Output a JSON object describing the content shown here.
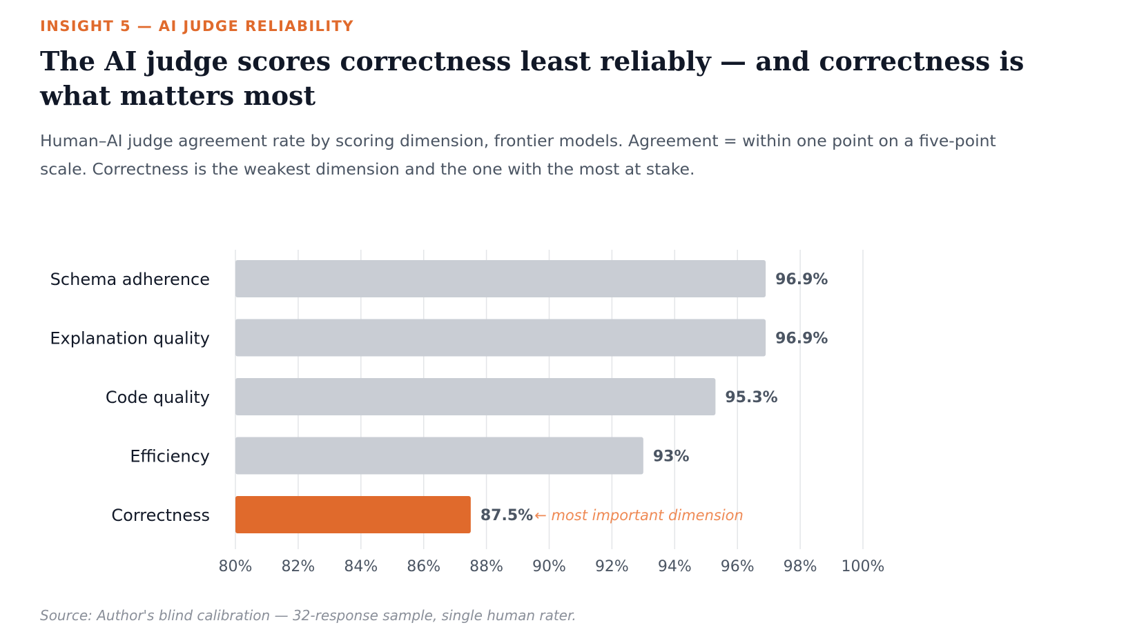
{
  "eyebrow": "INSIGHT 5 — AI JUDGE RELIABILITY",
  "title": "The AI judge scores correctness least reliably — and correctness is what matters most",
  "subtitle": "Human–AI judge agreement rate by scoring dimension, frontier models. Agreement = within one point on a five-point scale. Correctness is the weakest dimension and the one with the most at stake.",
  "source": "Source: Author's blind calibration — 32-response sample, single human rater.",
  "colors": {
    "bar_default": "#c9cdd4",
    "bar_highlight": "#e06a2c",
    "gridline": "#e3e5e8",
    "category_label": "#111827",
    "value_label": "#4b5563",
    "tick_label": "#4b5563",
    "annotation": "#ef8a55"
  },
  "chart_data": {
    "type": "bar",
    "orientation": "horizontal",
    "categories": [
      "Schema adherence",
      "Explanation quality",
      "Code quality",
      "Efficiency",
      "Correctness"
    ],
    "values": [
      96.9,
      96.9,
      95.3,
      93,
      87.5
    ],
    "value_labels": [
      "96.9%",
      "96.9%",
      "95.3%",
      "93%",
      "87.5%"
    ],
    "highlight": "Correctness",
    "annotation": {
      "category": "Correctness",
      "text": "← most important dimension"
    },
    "xlim": [
      80,
      100
    ],
    "xticks": [
      80,
      82,
      84,
      86,
      88,
      90,
      92,
      94,
      96,
      98,
      100
    ],
    "xtick_labels": [
      "80%",
      "82%",
      "84%",
      "86%",
      "88%",
      "90%",
      "92%",
      "94%",
      "96%",
      "98%",
      "100%"
    ],
    "grid": true,
    "legend": "none",
    "xlabel": "",
    "ylabel": ""
  }
}
